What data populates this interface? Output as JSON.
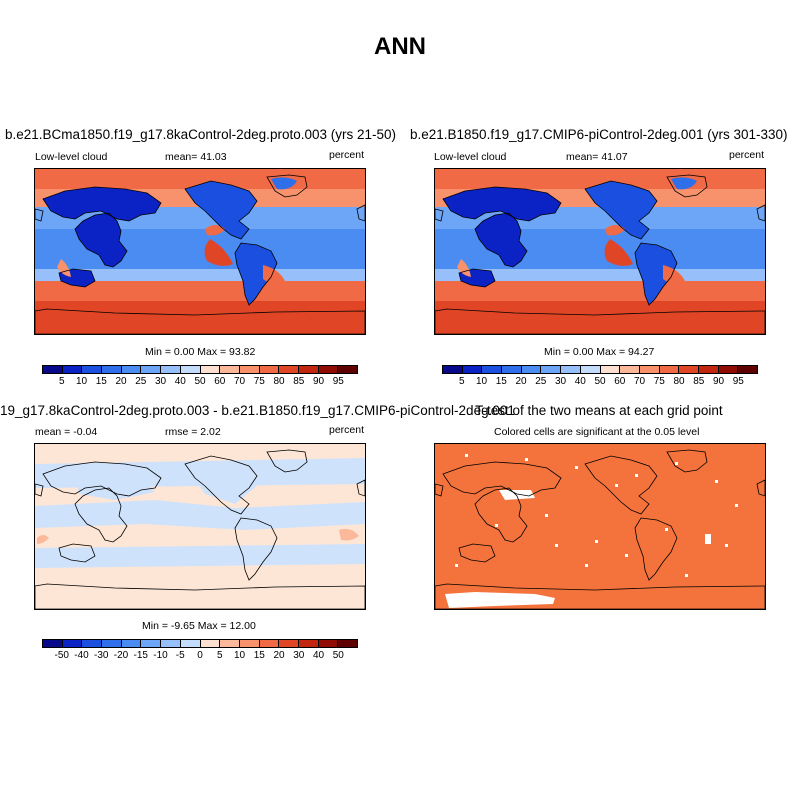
{
  "figure": {
    "title": "ANN"
  },
  "panels": {
    "p1": {
      "title": "b.e21.BCma1850.f19_g17.8kaControl-2deg.proto.003 (yrs 21-50)",
      "left_label": "Low-level cloud",
      "center_label": "mean=  41.03",
      "right_label": "percent",
      "minmax": "Min =   0.00 Max =  93.82",
      "colorbar_labels": [
        "5",
        "10",
        "15",
        "20",
        "25",
        "30",
        "40",
        "50",
        "60",
        "70",
        "75",
        "80",
        "85",
        "90",
        "95"
      ]
    },
    "p2": {
      "title": "b.e21.B1850.f19_g17.CMIP6-piControl-2deg.001 (yrs 301-330)",
      "left_label": "Low-level cloud",
      "center_label": "mean=  41.07",
      "right_label": "percent",
      "minmax": "Min =   0.00 Max =  94.27",
      "colorbar_labels": [
        "5",
        "10",
        "15",
        "20",
        "25",
        "30",
        "40",
        "50",
        "60",
        "70",
        "75",
        "80",
        "85",
        "90",
        "95"
      ]
    },
    "p3": {
      "title": "19_g17.8kaControl-2deg.proto.003 - b.e21.B1850.f19_g17.CMIP6-piControl-2deg.001",
      "left_label": "mean =  -0.04",
      "center_label": "rmse =   2.02",
      "right_label": "percent",
      "minmax": "Min =  -9.65 Max =  12.00",
      "colorbar_labels": [
        "-50",
        "-40",
        "-30",
        "-20",
        "-15",
        "-10",
        "-5",
        "0",
        "5",
        "10",
        "15",
        "20",
        "30",
        "40",
        "50"
      ]
    },
    "p4": {
      "title": "T-test of the two means at each grid point",
      "subtitle": "Colored cells are significant at the 0.05 level"
    }
  },
  "colors": {
    "seq_colorbar": [
      "#08088a",
      "#0b23c4",
      "#1a4fe0",
      "#2f6fea",
      "#4a8cf2",
      "#6ea6f7",
      "#97c0fa",
      "#c4dcfc",
      "#fde0cf",
      "#fbb89a",
      "#f7926d",
      "#f06a45",
      "#e04626",
      "#c2260f",
      "#8f0b03",
      "#5e0000"
    ],
    "diff_colorbar": [
      "#08088a",
      "#0b23c4",
      "#1a4fe0",
      "#2f6fea",
      "#4a8cf2",
      "#6ea6f7",
      "#97c0fa",
      "#c4dcfc",
      "#fde0cf",
      "#fbb89a",
      "#f7926d",
      "#f06a45",
      "#e04626",
      "#c2260f",
      "#8f0b03",
      "#5e0000"
    ],
    "ttest_fill": "#f4733d",
    "diff_base": "#fde6d6",
    "diff_blue": "#cfe2fb"
  }
}
